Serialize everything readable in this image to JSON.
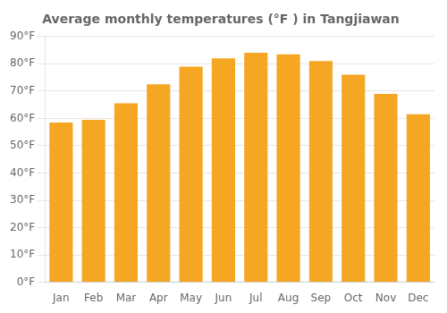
{
  "chart_data": {
    "type": "bar",
    "title": "Average monthly temperatures (°F ) in Tangjiawan",
    "categories": [
      "Jan",
      "Feb",
      "Mar",
      "Apr",
      "May",
      "Jun",
      "Jul",
      "Aug",
      "Sep",
      "Oct",
      "Nov",
      "Dec"
    ],
    "values": [
      58.5,
      59.5,
      65.5,
      72.5,
      79.0,
      82.0,
      84.0,
      83.5,
      81.0,
      76.0,
      69.0,
      61.5
    ],
    "color": "#F5A623",
    "ylim": [
      0,
      90
    ],
    "yticks": [
      {
        "value": 0,
        "label": "0°F"
      },
      {
        "value": 10,
        "label": "10°F"
      },
      {
        "value": 20,
        "label": "20°F"
      },
      {
        "value": 30,
        "label": "30°F"
      },
      {
        "value": 40,
        "label": "40°F"
      },
      {
        "value": 50,
        "label": "50°F"
      },
      {
        "value": 60,
        "label": "60°F"
      },
      {
        "value": 70,
        "label": "70°F"
      },
      {
        "value": 80,
        "label": "80°F"
      },
      {
        "value": 90,
        "label": "90°F"
      }
    ],
    "grid": true
  }
}
